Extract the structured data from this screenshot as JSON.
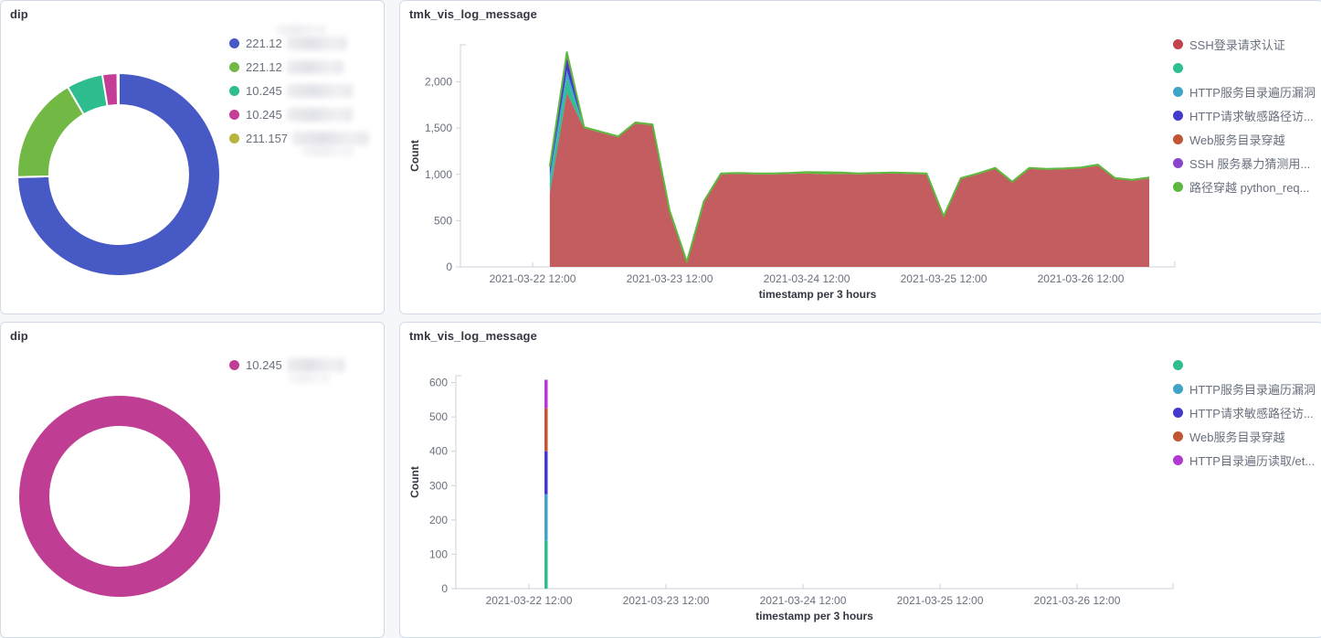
{
  "ui": {
    "panels": [
      {
        "title": "dip"
      },
      {
        "title": "tmk_vis_log_message"
      },
      {
        "title": "dip"
      },
      {
        "title": "tmk_vis_log_message"
      }
    ]
  },
  "colors": {
    "panel_border": "#d3dae6",
    "title_text": "#343741",
    "axis_text": "#69707d",
    "axis_line": "#ccd2dd"
  },
  "chart_data": [
    {
      "type": "pie",
      "donut": true,
      "title": "dip",
      "legend_position": "right",
      "slices": [
        {
          "label": "221.12",
          "label_redacted": true,
          "value_pct": 74.6,
          "color": "#4759c4"
        },
        {
          "label": "221.12",
          "label_redacted": true,
          "value_pct": 17.0,
          "color": "#71b944"
        },
        {
          "label": "10.245",
          "label_redacted": true,
          "value_pct": 5.8,
          "color": "#2ebd8e"
        },
        {
          "label": "10.245",
          "label_redacted": true,
          "value_pct": 2.4,
          "color": "#c43d97"
        },
        {
          "label": "211.157",
          "label_redacted": true,
          "value_pct": 0.2,
          "color": "#b6b43a"
        }
      ]
    },
    {
      "type": "area",
      "stacked": true,
      "title": "tmk_vis_log_message",
      "xlabel": "timestamp per 3 hours",
      "ylabel": "Count",
      "legend_position": "right",
      "grid": false,
      "ylim": [
        0,
        2400
      ],
      "yticks": [
        0,
        500,
        1000,
        1500,
        2000
      ],
      "ytick_labels": [
        "0",
        "500",
        "1,000",
        "1,500",
        "2,000"
      ],
      "xticks": [
        "2021-03-22 12:00",
        "2021-03-23 12:00",
        "2021-03-24 12:00",
        "2021-03-25 12:00",
        "2021-03-26 12:00"
      ],
      "x_start": "2021-03-22 15:00",
      "x_end": "2021-03-27 00:00",
      "bucket_hours": 3,
      "start_offset_hours": 3,
      "series": [
        {
          "name": "SSH登录请求认证",
          "color": "#c2434c",
          "fill": "#c45d5f",
          "values": [
            800,
            1880,
            1500,
            1450,
            1400,
            1550,
            1530,
            600,
            50,
            700,
            1000,
            1005,
            1000,
            1000,
            1005,
            1010,
            1000,
            1005,
            1000,
            1005,
            1010,
            1005,
            1000,
            540,
            950,
            1000,
            1060,
            910,
            1060,
            1050,
            1055,
            1065,
            1095,
            950,
            930,
            955
          ]
        },
        {
          "name": "",
          "color": "#30bf92",
          "values": [
            110,
            150,
            0,
            0,
            0,
            0,
            0,
            0,
            0,
            0,
            0,
            0,
            0,
            0,
            0,
            0,
            0,
            0,
            0,
            0,
            0,
            0,
            0,
            0,
            0,
            0,
            0,
            0,
            0,
            0,
            0,
            0,
            0,
            0,
            0,
            0
          ]
        },
        {
          "name": "HTTP服务目录遍历漏洞",
          "color": "#3fa4c6",
          "values": [
            70,
            90,
            0,
            0,
            0,
            0,
            0,
            0,
            0,
            0,
            0,
            0,
            0,
            0,
            0,
            0,
            0,
            0,
            0,
            0,
            0,
            0,
            0,
            0,
            0,
            0,
            0,
            0,
            0,
            0,
            0,
            0,
            0,
            0,
            0,
            0
          ]
        },
        {
          "name": "HTTP请求敏感路径访...",
          "color": "#4339cb",
          "values": [
            90,
            140,
            0,
            0,
            0,
            0,
            0,
            0,
            0,
            0,
            0,
            0,
            0,
            0,
            0,
            0,
            0,
            0,
            0,
            0,
            0,
            0,
            0,
            0,
            0,
            0,
            0,
            0,
            0,
            0,
            0,
            0,
            0,
            0,
            0,
            0
          ]
        },
        {
          "name": "Web服务目录穿越",
          "color": "#c05634",
          "values": [
            0,
            40,
            0,
            0,
            0,
            0,
            0,
            0,
            0,
            0,
            0,
            0,
            0,
            0,
            0,
            0,
            0,
            0,
            0,
            0,
            0,
            0,
            0,
            0,
            0,
            0,
            0,
            0,
            0,
            0,
            0,
            0,
            0,
            0,
            0,
            0
          ]
        },
        {
          "name": "SSH 服务暴力猜测用...",
          "color": "#8a46ca",
          "values": [
            0,
            0,
            0,
            0,
            0,
            0,
            0,
            0,
            0,
            0,
            0,
            0,
            0,
            0,
            0,
            0,
            0,
            0,
            0,
            0,
            0,
            0,
            0,
            0,
            0,
            0,
            0,
            0,
            0,
            0,
            0,
            0,
            0,
            0,
            0,
            0
          ]
        },
        {
          "name": "路径穿越 python_req...",
          "color": "#5cb83e",
          "outline": true,
          "values": [
            12,
            20,
            10,
            10,
            10,
            10,
            10,
            8,
            4,
            8,
            10,
            10,
            10,
            10,
            10,
            14,
            22,
            14,
            10,
            10,
            10,
            10,
            10,
            8,
            10,
            10,
            10,
            10,
            10,
            10,
            10,
            10,
            10,
            10,
            10,
            12
          ]
        }
      ]
    },
    {
      "type": "pie",
      "donut": true,
      "title": "dip",
      "legend_position": "right",
      "slices": [
        {
          "label": "10.245",
          "label_redacted": true,
          "value_pct": 100,
          "color": "#bf3e93"
        }
      ]
    },
    {
      "type": "area",
      "stacked": true,
      "title": "tmk_vis_log_message",
      "xlabel": "timestamp per 3 hours",
      "ylabel": "Count",
      "legend_position": "right",
      "grid": false,
      "ylim": [
        0,
        620
      ],
      "yticks": [
        0,
        100,
        200,
        300,
        400,
        500,
        600
      ],
      "ytick_labels": [
        "0",
        "100",
        "200",
        "300",
        "400",
        "500",
        "600"
      ],
      "xticks": [
        "2021-03-22 12:00",
        "2021-03-23 12:00",
        "2021-03-24 12:00",
        "2021-03-25 12:00",
        "2021-03-26 12:00"
      ],
      "x_start": "2021-03-22 15:00",
      "bucket_hours": 3,
      "start_offset_hours": 3,
      "single_spike_total": 608,
      "series": [
        {
          "name": "",
          "color": "#2ebd8e",
          "values": [
            140
          ]
        },
        {
          "name": "HTTP服务目录遍历漏洞",
          "color": "#3fa4c6",
          "values": [
            135
          ]
        },
        {
          "name": "HTTP请求敏感路径访...",
          "color": "#4339cb",
          "values": [
            125
          ]
        },
        {
          "name": "Web服务目录穿越",
          "color": "#c05634",
          "values": [
            125
          ]
        },
        {
          "name": "HTTP目录遍历读取/et...",
          "color": "#b23ad0",
          "values": [
            83
          ]
        }
      ]
    }
  ]
}
